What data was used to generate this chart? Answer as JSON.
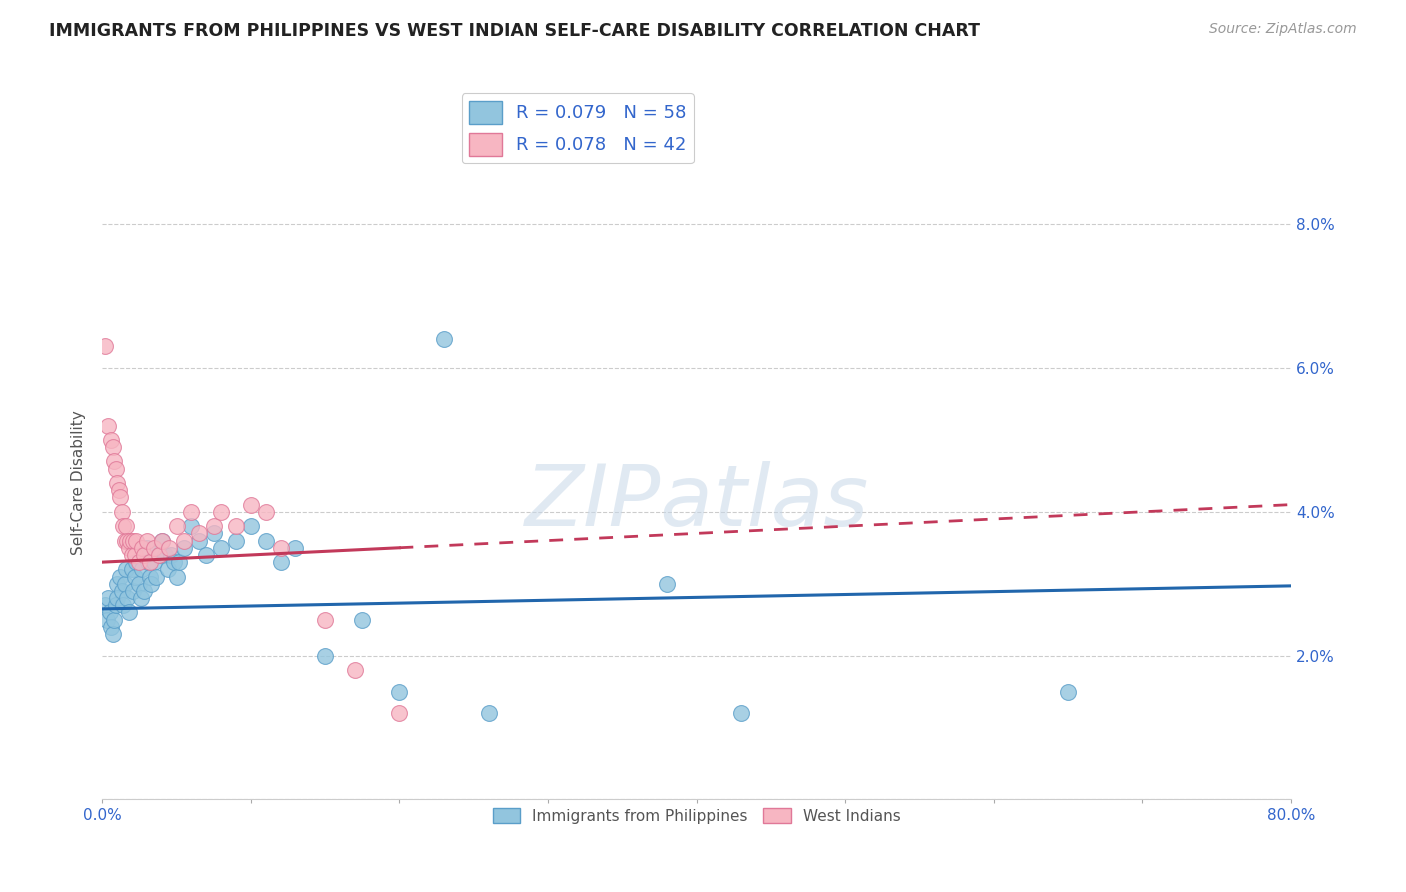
{
  "title": "IMMIGRANTS FROM PHILIPPINES VS WEST INDIAN SELF-CARE DISABILITY CORRELATION CHART",
  "source": "Source: ZipAtlas.com",
  "ylabel": "Self-Care Disability",
  "xlim": [
    0,
    0.8
  ],
  "ylim": [
    0,
    0.088
  ],
  "yticks": [
    0.0,
    0.02,
    0.04,
    0.06,
    0.08
  ],
  "xticks": [
    0.0,
    0.1,
    0.2,
    0.3,
    0.4,
    0.5,
    0.6,
    0.7,
    0.8
  ],
  "series1_label": "Immigrants from Philippines",
  "series2_label": "West Indians",
  "series1_R": "0.079",
  "series1_N": "58",
  "series2_R": "0.078",
  "series2_N": "42",
  "series1_color": "#92c5de",
  "series2_color": "#f7b6c2",
  "series1_edge": "#5a9ec9",
  "series2_edge": "#e07898",
  "line1_color": "#2166ac",
  "line2_color": "#c2395a",
  "watermark": "ZIPatlas",
  "background_color": "#ffffff",
  "series1_x": [
    0.002,
    0.003,
    0.004,
    0.005,
    0.006,
    0.007,
    0.008,
    0.009,
    0.01,
    0.01,
    0.012,
    0.013,
    0.014,
    0.015,
    0.016,
    0.017,
    0.018,
    0.02,
    0.021,
    0.022,
    0.023,
    0.025,
    0.026,
    0.027,
    0.028,
    0.03,
    0.031,
    0.032,
    0.033,
    0.035,
    0.036,
    0.038,
    0.04,
    0.042,
    0.044,
    0.046,
    0.048,
    0.05,
    0.052,
    0.055,
    0.06,
    0.065,
    0.07,
    0.075,
    0.08,
    0.09,
    0.1,
    0.11,
    0.12,
    0.13,
    0.15,
    0.175,
    0.2,
    0.23,
    0.26,
    0.38,
    0.43,
    0.65
  ],
  "series1_y": [
    0.027,
    0.025,
    0.028,
    0.026,
    0.024,
    0.023,
    0.025,
    0.027,
    0.03,
    0.028,
    0.031,
    0.029,
    0.027,
    0.03,
    0.032,
    0.028,
    0.026,
    0.032,
    0.029,
    0.031,
    0.033,
    0.03,
    0.028,
    0.032,
    0.029,
    0.035,
    0.033,
    0.031,
    0.03,
    0.033,
    0.031,
    0.034,
    0.036,
    0.034,
    0.032,
    0.034,
    0.033,
    0.031,
    0.033,
    0.035,
    0.038,
    0.036,
    0.034,
    0.037,
    0.035,
    0.036,
    0.038,
    0.036,
    0.033,
    0.035,
    0.02,
    0.025,
    0.015,
    0.064,
    0.012,
    0.03,
    0.012,
    0.015
  ],
  "series2_x": [
    0.002,
    0.004,
    0.006,
    0.007,
    0.008,
    0.009,
    0.01,
    0.011,
    0.012,
    0.013,
    0.014,
    0.015,
    0.016,
    0.017,
    0.018,
    0.019,
    0.02,
    0.021,
    0.022,
    0.023,
    0.025,
    0.027,
    0.028,
    0.03,
    0.032,
    0.035,
    0.038,
    0.04,
    0.045,
    0.05,
    0.055,
    0.06,
    0.065,
    0.075,
    0.08,
    0.09,
    0.1,
    0.11,
    0.12,
    0.15,
    0.17,
    0.2
  ],
  "series2_y": [
    0.063,
    0.052,
    0.05,
    0.049,
    0.047,
    0.046,
    0.044,
    0.043,
    0.042,
    0.04,
    0.038,
    0.036,
    0.038,
    0.036,
    0.035,
    0.036,
    0.034,
    0.036,
    0.034,
    0.036,
    0.033,
    0.035,
    0.034,
    0.036,
    0.033,
    0.035,
    0.034,
    0.036,
    0.035,
    0.038,
    0.036,
    0.04,
    0.037,
    0.038,
    0.04,
    0.038,
    0.041,
    0.04,
    0.035,
    0.025,
    0.018,
    0.012
  ],
  "line1_intercept": 0.0265,
  "line1_slope": 0.004,
  "line2_intercept": 0.033,
  "line2_slope": 0.01
}
